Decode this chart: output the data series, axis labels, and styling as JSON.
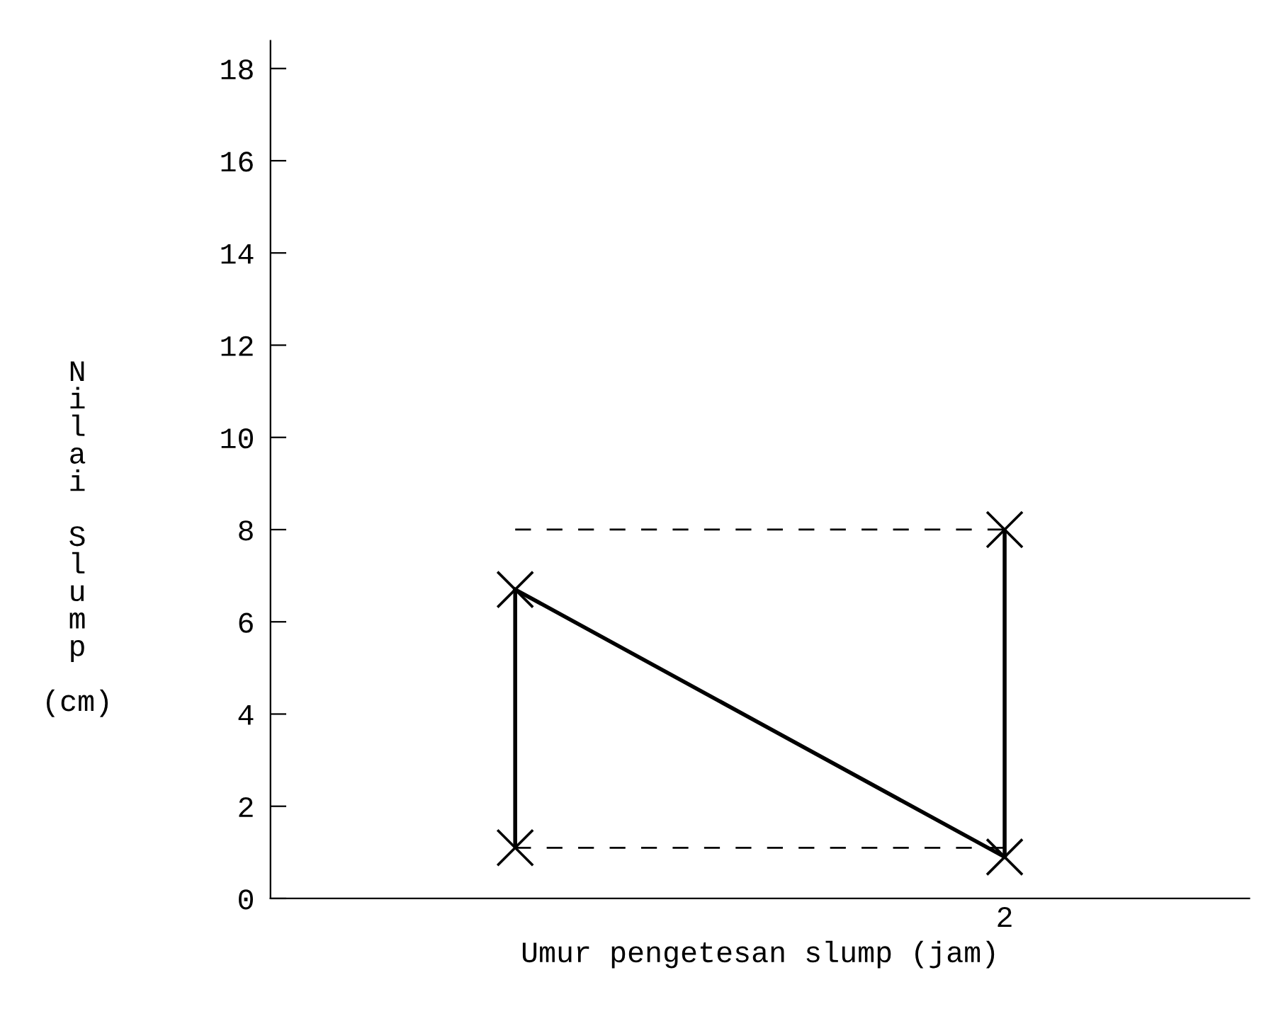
{
  "chart_data": {
    "type": "line",
    "xlabel": "Umur pengetesan slump (jam)",
    "ylabel": "Nilai Slump (cm)",
    "categories": [
      null,
      "2"
    ],
    "ylim": [
      0,
      18.6
    ],
    "yticks": [
      0,
      2,
      4,
      6,
      8,
      10,
      12,
      14,
      16,
      18
    ],
    "marker": "cross",
    "grid": false,
    "legend": false,
    "series": [
      {
        "color": "#000000",
        "values": [
          6.7,
          0.9
        ],
        "errors": [
          [
            1.1,
            6.7
          ],
          [
            0.9,
            8.0
          ]
        ]
      },
      {
        "type": "scatter",
        "color": "#000000",
        "values": [
          1.1,
          8.0
        ]
      }
    ],
    "ref_lines": [
      {
        "axis": "y",
        "value": 8.0,
        "color": "#000000",
        "line_style": "dashed"
      },
      {
        "axis": "y",
        "value": 1.1,
        "color": "#000000",
        "line_style": "dashed"
      }
    ]
  }
}
